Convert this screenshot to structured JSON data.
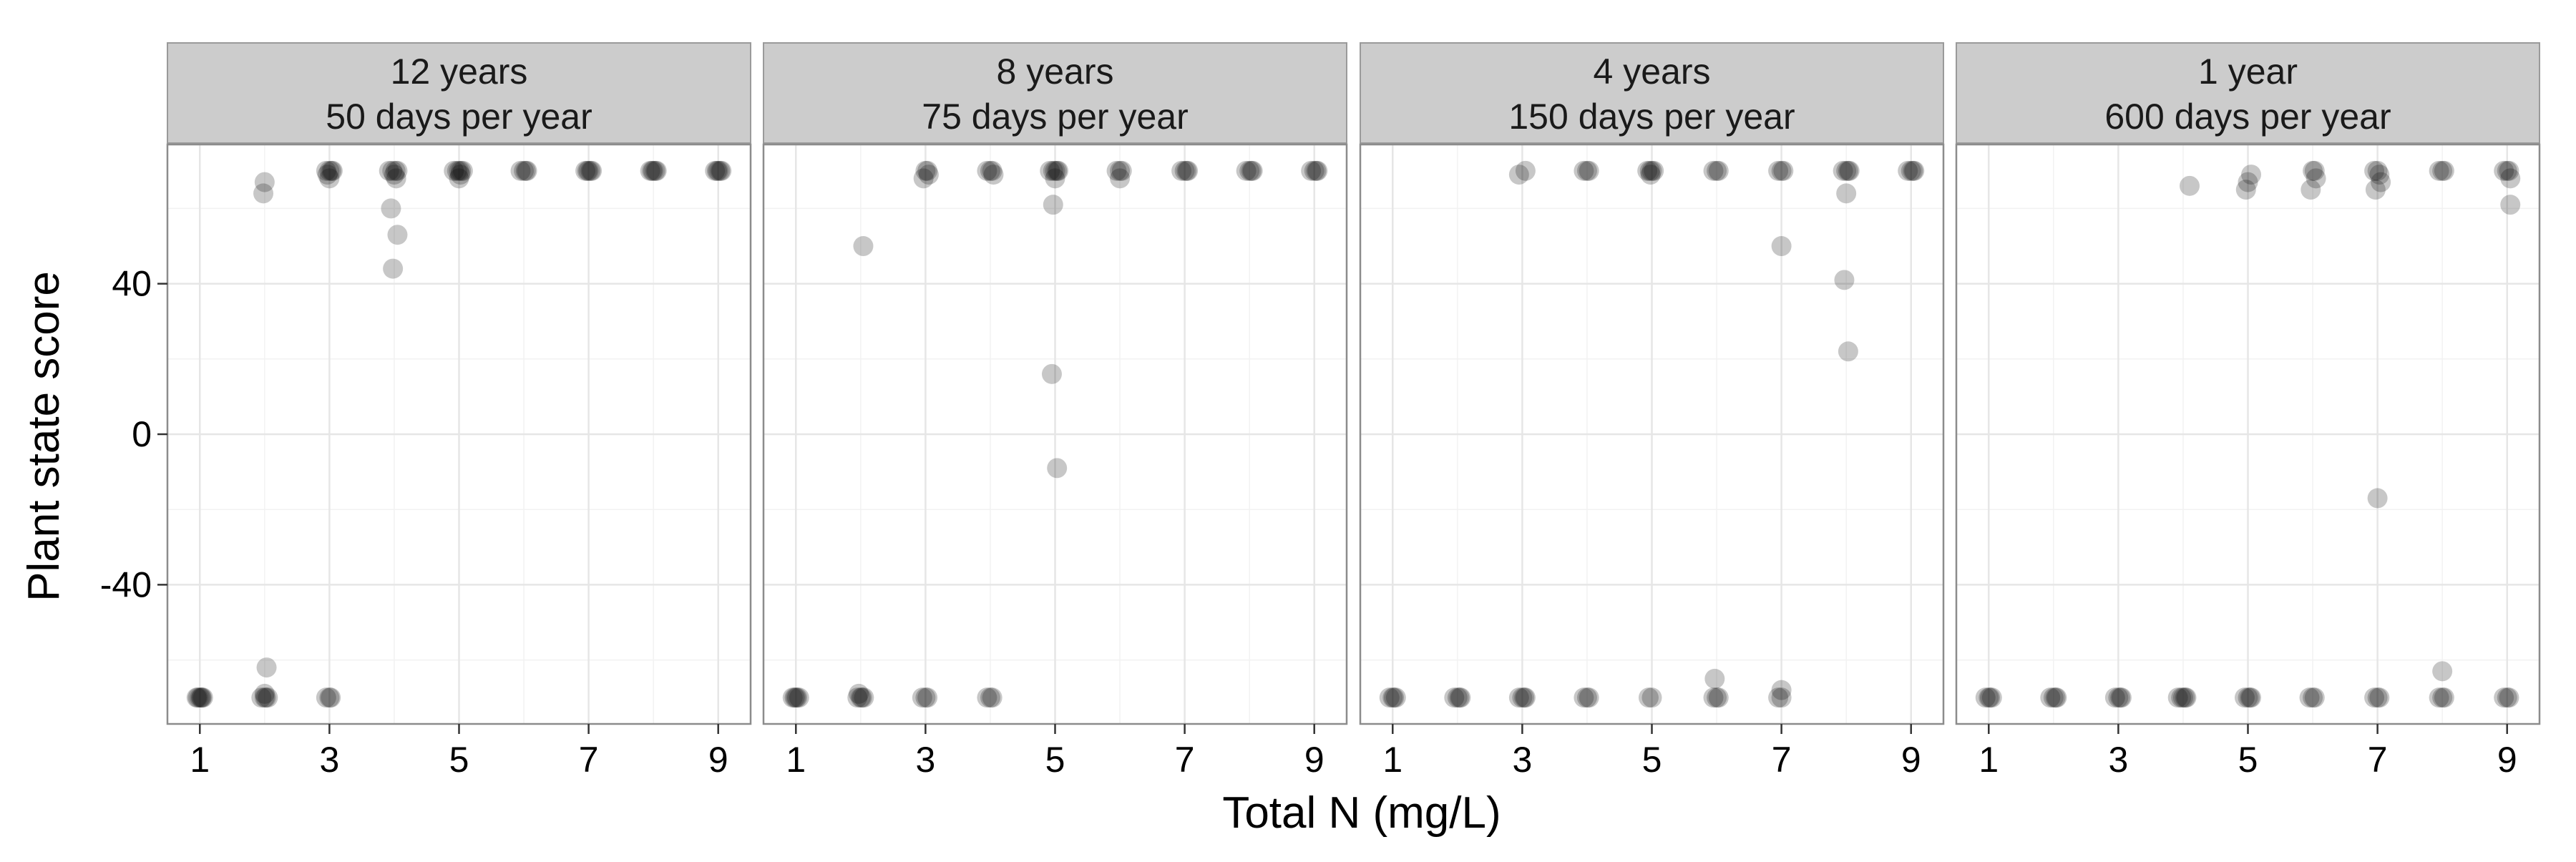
{
  "chart_data": {
    "type": "scatter",
    "xlabel": "Total N (mg/L)",
    "ylabel": "Plant state score",
    "xlim": [
      0.5,
      9.5
    ],
    "ylim": [
      -77,
      77
    ],
    "xticks": [
      1,
      3,
      5,
      7,
      9
    ],
    "yticks": [
      -40,
      0,
      40
    ],
    "grid": true,
    "point_color": "#000000",
    "point_alpha": 0.22,
    "strip_fill": "#cccccc",
    "panels": [
      {
        "strip": [
          "12 years",
          "50 days per year"
        ],
        "points": [
          [
            0.95,
            -70
          ],
          [
            1.0,
            -70
          ],
          [
            1.02,
            -70
          ],
          [
            1.05,
            -70
          ],
          [
            0.97,
            -70
          ],
          [
            1.03,
            -70
          ],
          [
            1.95,
            -70
          ],
          [
            2.0,
            -70
          ],
          [
            2.05,
            -70
          ],
          [
            2.0,
            -69
          ],
          [
            2.02,
            -70
          ],
          [
            2.03,
            -62
          ],
          [
            1.98,
            64
          ],
          [
            2.0,
            67
          ],
          [
            2.95,
            -70
          ],
          [
            3.0,
            -70
          ],
          [
            3.02,
            -70
          ],
          [
            2.95,
            70
          ],
          [
            3.0,
            70
          ],
          [
            3.03,
            70
          ],
          [
            2.97,
            69
          ],
          [
            3.05,
            70
          ],
          [
            3.0,
            68
          ],
          [
            3.92,
            70
          ],
          [
            3.97,
            70
          ],
          [
            4.02,
            70
          ],
          [
            4.05,
            70
          ],
          [
            4.0,
            69
          ],
          [
            4.03,
            68
          ],
          [
            3.95,
            60
          ],
          [
            4.05,
            53
          ],
          [
            3.98,
            44
          ],
          [
            4.92,
            70
          ],
          [
            4.97,
            70
          ],
          [
            5.0,
            70
          ],
          [
            5.03,
            70
          ],
          [
            5.06,
            70
          ],
          [
            5.0,
            68
          ],
          [
            5.02,
            69
          ],
          [
            5.95,
            70
          ],
          [
            6.0,
            70
          ],
          [
            6.03,
            70
          ],
          [
            6.05,
            70
          ],
          [
            6.95,
            70
          ],
          [
            7.0,
            70
          ],
          [
            7.03,
            70
          ],
          [
            7.05,
            70
          ],
          [
            6.98,
            70
          ],
          [
            7.95,
            70
          ],
          [
            8.0,
            70
          ],
          [
            8.03,
            70
          ],
          [
            8.05,
            70
          ],
          [
            7.98,
            70
          ],
          [
            8.95,
            70
          ],
          [
            9.0,
            70
          ],
          [
            9.03,
            70
          ],
          [
            9.05,
            70
          ],
          [
            8.98,
            70
          ]
        ]
      },
      {
        "strip": [
          "8 years",
          "75 days per year"
        ],
        "points": [
          [
            0.95,
            -70
          ],
          [
            1.0,
            -70
          ],
          [
            1.02,
            -70
          ],
          [
            1.05,
            -70
          ],
          [
            0.98,
            -70
          ],
          [
            1.95,
            -70
          ],
          [
            2.0,
            -70
          ],
          [
            2.05,
            -70
          ],
          [
            1.97,
            -69
          ],
          [
            2.02,
            -70
          ],
          [
            2.04,
            50
          ],
          [
            2.95,
            -70
          ],
          [
            3.0,
            -70
          ],
          [
            3.03,
            -70
          ],
          [
            2.97,
            68
          ],
          [
            3.0,
            70
          ],
          [
            3.03,
            70
          ],
          [
            3.05,
            69
          ],
          [
            3.95,
            -70
          ],
          [
            4.0,
            -70
          ],
          [
            4.03,
            -70
          ],
          [
            3.95,
            70
          ],
          [
            4.0,
            70
          ],
          [
            4.03,
            70
          ],
          [
            4.05,
            69
          ],
          [
            4.92,
            70
          ],
          [
            4.97,
            70
          ],
          [
            5.0,
            70
          ],
          [
            5.03,
            70
          ],
          [
            5.05,
            70
          ],
          [
            4.97,
            61
          ],
          [
            5.0,
            68
          ],
          [
            4.95,
            16
          ],
          [
            5.03,
            -9
          ],
          [
            5.95,
            70
          ],
          [
            6.0,
            70
          ],
          [
            6.03,
            70
          ],
          [
            6.0,
            68
          ],
          [
            6.95,
            70
          ],
          [
            7.0,
            70
          ],
          [
            7.03,
            70
          ],
          [
            7.05,
            70
          ],
          [
            7.95,
            70
          ],
          [
            8.0,
            70
          ],
          [
            8.03,
            70
          ],
          [
            8.05,
            70
          ],
          [
            8.95,
            70
          ],
          [
            9.0,
            70
          ],
          [
            9.03,
            70
          ],
          [
            9.05,
            70
          ]
        ]
      },
      {
        "strip": [
          "4 years",
          "150 days per year"
        ],
        "points": [
          [
            0.95,
            -70
          ],
          [
            1.0,
            -70
          ],
          [
            1.02,
            -70
          ],
          [
            1.05,
            -70
          ],
          [
            1.95,
            -70
          ],
          [
            2.0,
            -70
          ],
          [
            2.03,
            -70
          ],
          [
            2.05,
            -70
          ],
          [
            2.95,
            -70
          ],
          [
            3.0,
            -70
          ],
          [
            3.03,
            -70
          ],
          [
            3.05,
            -70
          ],
          [
            2.95,
            69
          ],
          [
            3.05,
            70
          ],
          [
            3.95,
            -70
          ],
          [
            4.0,
            -70
          ],
          [
            4.03,
            -70
          ],
          [
            3.95,
            70
          ],
          [
            4.0,
            70
          ],
          [
            4.03,
            70
          ],
          [
            4.95,
            -70
          ],
          [
            5.0,
            -70
          ],
          [
            4.93,
            70
          ],
          [
            4.97,
            70
          ],
          [
            5.0,
            70
          ],
          [
            5.03,
            70
          ],
          [
            4.98,
            69
          ],
          [
            5.95,
            -70
          ],
          [
            6.0,
            -70
          ],
          [
            6.03,
            -70
          ],
          [
            5.97,
            -65
          ],
          [
            5.95,
            70
          ],
          [
            6.0,
            70
          ],
          [
            6.03,
            70
          ],
          [
            6.95,
            -70
          ],
          [
            7.0,
            -70
          ],
          [
            7.0,
            -68
          ],
          [
            6.95,
            70
          ],
          [
            7.0,
            70
          ],
          [
            7.03,
            70
          ],
          [
            7.0,
            50
          ],
          [
            7.95,
            70
          ],
          [
            8.0,
            70
          ],
          [
            8.03,
            70
          ],
          [
            8.05,
            70
          ],
          [
            8.0,
            64
          ],
          [
            7.97,
            41
          ],
          [
            8.03,
            22
          ],
          [
            8.95,
            70
          ],
          [
            9.0,
            70
          ],
          [
            9.03,
            70
          ],
          [
            9.05,
            70
          ]
        ]
      },
      {
        "strip": [
          "1 year",
          "600 days per year"
        ],
        "points": [
          [
            0.95,
            -70
          ],
          [
            1.0,
            -70
          ],
          [
            1.02,
            -70
          ],
          [
            1.05,
            -70
          ],
          [
            1.95,
            -70
          ],
          [
            2.0,
            -70
          ],
          [
            2.03,
            -70
          ],
          [
            2.05,
            -70
          ],
          [
            2.95,
            -70
          ],
          [
            3.0,
            -70
          ],
          [
            3.03,
            -70
          ],
          [
            3.05,
            -70
          ],
          [
            3.92,
            -70
          ],
          [
            3.97,
            -70
          ],
          [
            4.0,
            -70
          ],
          [
            4.03,
            -70
          ],
          [
            4.05,
            -70
          ],
          [
            4.1,
            66
          ],
          [
            4.95,
            -70
          ],
          [
            5.0,
            -70
          ],
          [
            5.03,
            -70
          ],
          [
            5.05,
            -70
          ],
          [
            4.97,
            65
          ],
          [
            5.0,
            67
          ],
          [
            5.05,
            69
          ],
          [
            5.95,
            -70
          ],
          [
            6.0,
            -70
          ],
          [
            6.03,
            -70
          ],
          [
            5.97,
            65
          ],
          [
            6.0,
            70
          ],
          [
            6.03,
            70
          ],
          [
            6.05,
            68
          ],
          [
            6.95,
            -70
          ],
          [
            7.0,
            -70
          ],
          [
            7.03,
            -70
          ],
          [
            6.95,
            70
          ],
          [
            7.0,
            70
          ],
          [
            7.03,
            69
          ],
          [
            7.05,
            67
          ],
          [
            6.97,
            65
          ],
          [
            7.0,
            -17
          ],
          [
            7.95,
            -70
          ],
          [
            8.0,
            -70
          ],
          [
            8.03,
            -70
          ],
          [
            8.0,
            -63
          ],
          [
            7.95,
            70
          ],
          [
            8.0,
            70
          ],
          [
            8.03,
            70
          ],
          [
            8.95,
            -70
          ],
          [
            9.0,
            -70
          ],
          [
            9.03,
            -70
          ],
          [
            8.95,
            70
          ],
          [
            9.0,
            70
          ],
          [
            9.03,
            70
          ],
          [
            9.05,
            68
          ],
          [
            9.05,
            61
          ]
        ]
      }
    ]
  }
}
